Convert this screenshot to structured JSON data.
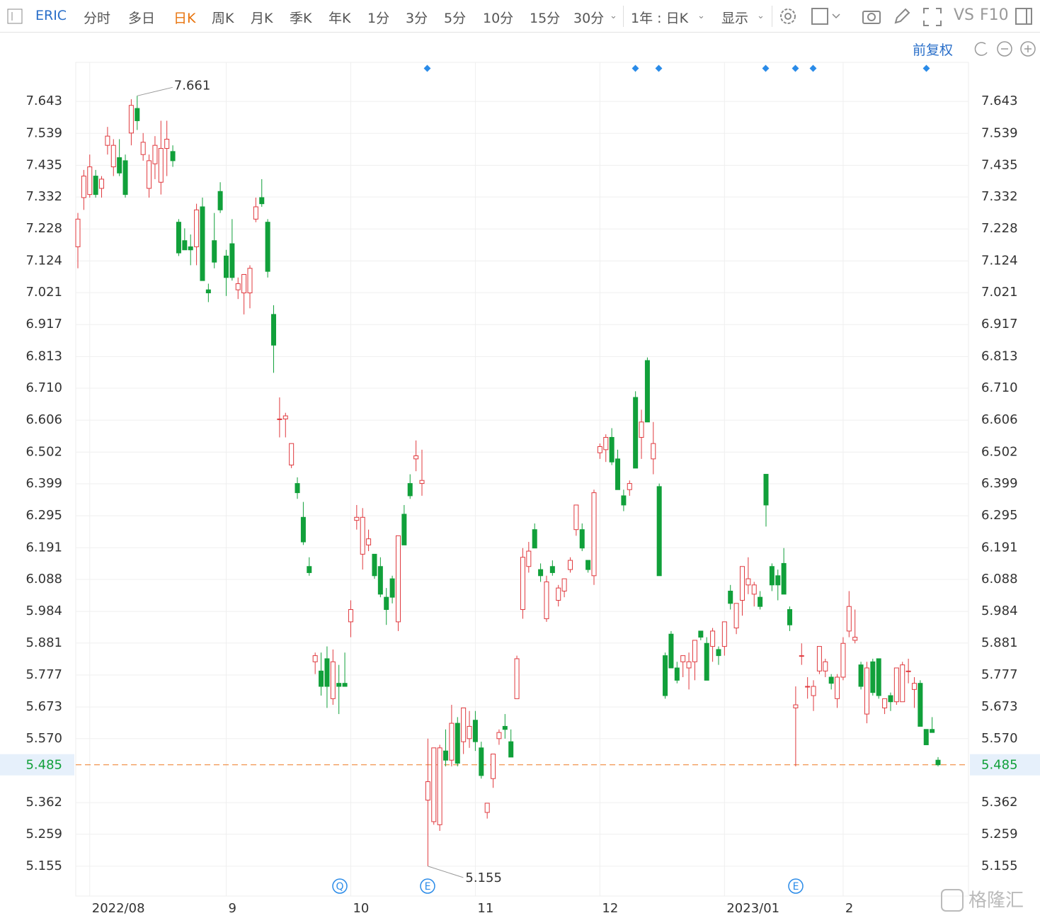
{
  "toolbar": {
    "symbol": "ERIC",
    "periods": [
      "分时",
      "多日",
      "日K",
      "周K",
      "月K",
      "季K",
      "年K",
      "1分",
      "3分",
      "5分",
      "10分",
      "15分",
      "30分"
    ],
    "range": "1年 : 日K",
    "display": "显示",
    "vs": "VS",
    "f10": "F10",
    "adjust": "前复权"
  },
  "watermark": "格隆汇",
  "chart_data": {
    "type": "candlestick",
    "symbol": "ERIC",
    "categories": [
      null,
      null,
      "2022/08",
      null,
      null,
      null,
      null,
      null,
      null,
      null,
      null,
      null,
      null,
      null,
      null,
      null,
      null,
      null,
      null,
      null,
      null,
      null,
      null,
      null,
      null,
      "9",
      null,
      null,
      null,
      null,
      null,
      null,
      null,
      null,
      null,
      null,
      null,
      null,
      null,
      null,
      null,
      null,
      null,
      null,
      null,
      null,
      "10",
      null,
      null,
      null,
      null,
      null,
      null,
      null,
      null,
      null,
      null,
      null,
      null,
      null,
      null,
      null,
      null,
      null,
      null,
      null,
      null,
      "11",
      null,
      null,
      null,
      null,
      null,
      null,
      null,
      null,
      null,
      null,
      null,
      null,
      null,
      null,
      null,
      null,
      null,
      null,
      null,
      null,
      "12",
      null,
      null,
      null,
      null,
      null,
      null,
      null,
      null,
      null,
      null,
      null,
      null,
      null,
      null,
      null,
      null,
      null,
      null,
      null,
      null,
      "2023/01",
      null,
      null,
      null,
      null,
      null,
      null,
      null,
      null,
      null,
      null,
      null,
      null,
      null,
      null,
      null,
      null,
      null,
      null,
      null,
      "2",
      null,
      null,
      null,
      null,
      null,
      null,
      null,
      null,
      null,
      null,
      null,
      null,
      null,
      null,
      null,
      null
    ],
    "open": [
      7.17,
      7.33,
      7.34,
      7.4,
      7.36,
      7.5,
      7.43,
      7.46,
      7.45,
      7.54,
      7.62,
      7.47,
      7.36,
      7.44,
      7.38,
      7.49,
      7.48,
      7.25,
      7.19,
      7.17,
      7.17,
      7.3,
      7.03,
      7.19,
      7.35,
      7.14,
      7.18,
      7.03,
      7.02,
      7.02,
      7.26,
      7.33,
      7.25,
      6.95,
      6.61,
      6.61,
      6.46,
      6.4,
      6.29,
      6.13,
      5.82,
      5.79,
      5.83,
      5.7,
      5.75,
      5.75,
      5.95,
      6.28,
      6.17,
      6.2,
      6.17,
      6.13,
      6.03,
      6.09,
      5.95,
      6.3,
      6.4,
      6.48,
      6.4,
      5.37,
      5.3,
      5.29,
      5.53,
      5.5,
      5.62,
      5.56,
      5.57,
      5.63,
      5.54,
      5.33,
      5.44,
      5.57,
      5.61,
      5.56,
      5.7,
      5.99,
      6.13,
      6.25,
      6.12,
      5.96,
      6.13,
      6.02,
      6.05,
      6.12,
      6.25,
      6.25,
      6.15,
      6.1,
      6.5,
      6.51,
      6.55,
      6.48,
      6.36,
      6.38,
      6.68,
      6.55,
      6.8,
      6.48,
      6.39,
      5.84,
      5.91,
      5.8,
      5.82,
      5.8,
      5.82,
      5.92,
      5.88,
      5.87,
      5.86,
      5.87,
      6.05,
      5.93,
      6.02,
      6.07,
      6.04,
      6.03,
      6.43,
      6.13,
      6.1,
      6.14,
      5.99,
      5.67,
      5.84,
      5.74,
      5.71,
      5.79,
      5.79,
      5.77,
      5.7,
      5.77,
      5.92,
      5.89,
      5.81,
      5.65,
      5.82,
      5.83,
      5.67,
      5.71,
      5.69,
      5.69,
      5.79,
      5.73,
      5.75,
      5.6,
      5.6,
      5.5
    ],
    "high": [
      7.28,
      7.42,
      7.47,
      7.42,
      7.4,
      7.56,
      7.52,
      7.52,
      7.47,
      7.65,
      7.661,
      7.54,
      7.47,
      7.53,
      7.58,
      7.58,
      7.5,
      7.26,
      7.23,
      7.21,
      7.31,
      7.33,
      7.05,
      7.28,
      7.38,
      7.16,
      7.26,
      7.07,
      7.07,
      7.11,
      7.33,
      7.39,
      7.26,
      6.98,
      6.68,
      6.63,
      6.53,
      6.42,
      6.34,
      6.16,
      5.85,
      5.85,
      5.87,
      5.86,
      5.81,
      5.85,
      6.02,
      6.33,
      6.32,
      6.25,
      6.17,
      6.16,
      6.06,
      6.1,
      6.23,
      6.33,
      6.43,
      6.54,
      6.51,
      5.57,
      5.54,
      5.55,
      5.6,
      5.68,
      5.64,
      5.67,
      5.66,
      5.66,
      5.56,
      5.36,
      5.5,
      5.6,
      5.65,
      5.6,
      5.84,
      6.19,
      6.21,
      6.27,
      6.14,
      6.1,
      6.15,
      6.07,
      6.09,
      6.16,
      6.33,
      6.27,
      6.15,
      6.38,
      6.53,
      6.56,
      6.58,
      6.51,
      6.38,
      6.41,
      6.7,
      6.64,
      6.81,
      6.6,
      6.4,
      5.85,
      5.92,
      5.82,
      5.84,
      5.85,
      5.89,
      5.92,
      5.9,
      5.93,
      5.87,
      5.95,
      6.07,
      6.0,
      6.13,
      6.16,
      6.08,
      6.05,
      6.43,
      6.14,
      6.12,
      6.19,
      6.0,
      5.74,
      5.88,
      5.77,
      5.76,
      5.87,
      5.83,
      5.78,
      5.78,
      5.9,
      6.05,
      5.99,
      5.82,
      5.82,
      5.83,
      5.83,
      5.7,
      5.72,
      5.8,
      5.82,
      5.83,
      5.77,
      5.76,
      5.6,
      5.64,
      5.51
    ],
    "low": [
      7.1,
      7.29,
      7.33,
      7.33,
      7.33,
      7.47,
      7.4,
      7.4,
      7.33,
      7.5,
      7.55,
      7.45,
      7.33,
      7.39,
      7.34,
      7.4,
      7.43,
      7.14,
      7.16,
      7.11,
      7.11,
      7.06,
      6.99,
      7.1,
      7.28,
      7.01,
      7.06,
      7.0,
      6.95,
      6.97,
      7.25,
      7.3,
      7.07,
      6.76,
      6.55,
      6.55,
      6.45,
      6.35,
      6.2,
      6.1,
      5.78,
      5.71,
      5.67,
      5.68,
      5.65,
      5.74,
      5.9,
      6.25,
      6.12,
      6.18,
      6.09,
      6.03,
      5.94,
      6.01,
      5.92,
      6.2,
      6.35,
      6.44,
      6.36,
      5.155,
      5.29,
      5.27,
      5.48,
      5.48,
      5.48,
      5.52,
      5.54,
      5.53,
      5.44,
      5.31,
      5.41,
      5.55,
      5.57,
      5.51,
      5.7,
      5.96,
      6.11,
      6.19,
      6.08,
      5.95,
      6.1,
      6.0,
      6.03,
      6.11,
      6.23,
      6.18,
      6.11,
      6.07,
      6.48,
      6.47,
      6.46,
      6.38,
      6.31,
      6.36,
      6.45,
      6.48,
      6.6,
      6.43,
      6.1,
      5.7,
      5.8,
      5.75,
      5.77,
      5.73,
      5.76,
      5.89,
      5.76,
      5.82,
      5.81,
      5.84,
      5.99,
      5.91,
      5.97,
      6.04,
      6.0,
      5.99,
      6.26,
      6.05,
      6.02,
      6.05,
      5.92,
      5.48,
      5.81,
      5.7,
      5.66,
      5.78,
      5.77,
      5.73,
      5.67,
      5.76,
      5.9,
      5.88,
      5.73,
      5.62,
      5.71,
      5.7,
      5.65,
      5.66,
      5.68,
      5.69,
      5.75,
      5.67,
      5.61,
      5.55,
      5.59,
      5.48
    ],
    "close": [
      7.26,
      7.4,
      7.43,
      7.34,
      7.39,
      7.53,
      7.5,
      7.41,
      7.34,
      7.63,
      7.58,
      7.51,
      7.45,
      7.5,
      7.49,
      7.52,
      7.45,
      7.15,
      7.16,
      7.16,
      7.29,
      7.06,
      7.02,
      7.12,
      7.29,
      7.07,
      7.07,
      7.05,
      7.08,
      7.1,
      7.3,
      7.31,
      7.09,
      6.85,
      6.61,
      6.62,
      6.53,
      6.37,
      6.21,
      6.11,
      5.84,
      5.74,
      5.74,
      5.82,
      5.74,
      5.74,
      5.99,
      6.29,
      6.29,
      6.22,
      6.1,
      6.04,
      5.99,
      6.03,
      6.23,
      6.2,
      6.36,
      6.49,
      6.41,
      5.43,
      5.54,
      5.54,
      5.5,
      5.62,
      5.49,
      5.67,
      5.61,
      5.56,
      5.45,
      5.36,
      5.52,
      5.59,
      5.6,
      5.51,
      5.83,
      6.16,
      6.18,
      6.19,
      6.1,
      6.08,
      6.11,
      6.06,
      6.09,
      6.15,
      6.33,
      6.19,
      6.12,
      6.37,
      6.52,
      6.55,
      6.47,
      6.38,
      6.33,
      6.4,
      6.45,
      6.6,
      6.6,
      6.53,
      6.1,
      5.71,
      5.8,
      5.76,
      5.84,
      5.82,
      5.89,
      5.9,
      5.76,
      5.92,
      5.84,
      5.95,
      6.01,
      6.01,
      6.13,
      6.09,
      6.07,
      6.0,
      6.33,
      6.07,
      6.07,
      6.04,
      5.94,
      5.68,
      5.84,
      5.74,
      5.74,
      5.87,
      5.82,
      5.75,
      5.77,
      5.88,
      6.0,
      5.9,
      5.74,
      5.8,
      5.72,
      5.71,
      5.7,
      5.69,
      5.8,
      5.81,
      5.79,
      5.75,
      5.61,
      5.55,
      5.59,
      5.485
    ],
    "up_color": "#e0393e",
    "down_color": "#11a03a",
    "ylim": [
      5.058,
      7.77
    ],
    "yticks": [
      7.643,
      7.539,
      7.435,
      7.332,
      7.228,
      7.124,
      7.021,
      6.917,
      6.813,
      {
        "value": 6.71,
        "label": "6.710"
      },
      6.606,
      6.502,
      6.399,
      6.295,
      6.191,
      6.088,
      5.984,
      5.881,
      5.777,
      5.673,
      {
        "value": 5.57,
        "label": "5.570"
      },
      5.362,
      5.259,
      5.155
    ],
    "grid": true,
    "high_label": 7.661,
    "low_label": 5.155,
    "last_price": 5.485,
    "last_price_color": "#f08a3c",
    "event_labels": [
      "Q",
      "E",
      "E"
    ]
  }
}
